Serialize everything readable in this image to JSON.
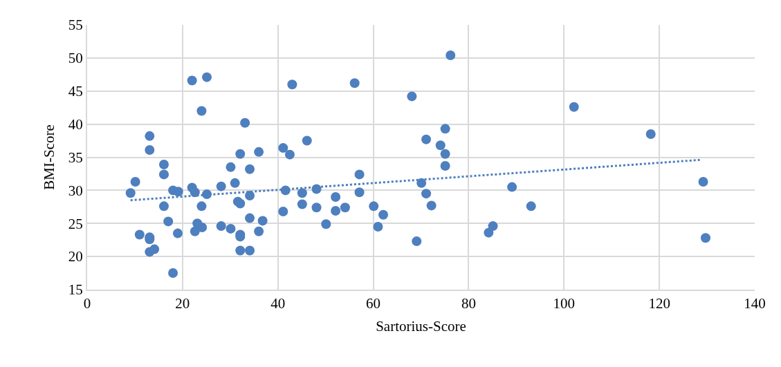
{
  "chart_data": {
    "type": "scatter",
    "xlabel": "Sartorius-Score",
    "ylabel": "BMI-Score",
    "xlim": [
      0,
      140
    ],
    "xticks": [
      0,
      20,
      40,
      60,
      80,
      100,
      120,
      140
    ],
    "ylim": [
      15,
      55
    ],
    "yticks": [
      15,
      20,
      25,
      30,
      35,
      40,
      45,
      50,
      55
    ],
    "grid": true,
    "marker": "circle",
    "series": [
      {
        "color": "#4e7fbf",
        "x": [
          22.0,
          25.1,
          24.0,
          33.1,
          13.1,
          13.1,
          16.1,
          16.1,
          10.1,
          9.1,
          18.0,
          19.1,
          22.0,
          22.6,
          25.1,
          28.1,
          31.0,
          32.1,
          30.1,
          34.1,
          36.0,
          34.1,
          31.6,
          32.1,
          16.1,
          24.0,
          34.1,
          36.8,
          17.0,
          23.1,
          24.1,
          22.6,
          28.1,
          30.1,
          32.1,
          32.1,
          36.0,
          11.0,
          13.1,
          13.1,
          13.1,
          14.1,
          32.1,
          34.1,
          18.0,
          19.0,
          76.2,
          43.0,
          56.1,
          68.1,
          75.1,
          71.1,
          74.1,
          75.1,
          75.1,
          46.1,
          41.1,
          42.5,
          57.1,
          70.1,
          71.1,
          72.2,
          41.6,
          45.1,
          48.1,
          52.1,
          57.1,
          45.1,
          48.1,
          52.1,
          54.1,
          41.1,
          60.1,
          62.1,
          61.0,
          50.1,
          69.1,
          102.1,
          118.2,
          129.2,
          129.7,
          89.1,
          93.1,
          85.1,
          84.2
        ],
        "values": [
          46.6,
          47.1,
          42.0,
          40.2,
          38.2,
          36.1,
          33.9,
          32.4,
          31.3,
          29.6,
          30.0,
          29.8,
          30.4,
          29.7,
          29.4,
          30.6,
          31.1,
          35.5,
          33.5,
          33.2,
          35.8,
          29.2,
          28.3,
          28.0,
          27.6,
          27.6,
          25.8,
          25.4,
          25.3,
          25.0,
          24.4,
          23.8,
          24.6,
          24.2,
          23.3,
          23.0,
          23.8,
          23.3,
          22.9,
          22.6,
          20.7,
          21.1,
          20.9,
          20.9,
          17.5,
          23.5,
          50.4,
          46.0,
          46.2,
          44.2,
          39.3,
          37.7,
          36.8,
          35.5,
          33.7,
          37.5,
          36.4,
          35.4,
          32.4,
          31.1,
          29.5,
          27.7,
          30.0,
          29.6,
          30.2,
          29.0,
          29.7,
          27.9,
          27.4,
          26.9,
          27.4,
          26.8,
          27.6,
          26.3,
          24.5,
          24.9,
          22.3,
          42.6,
          38.5,
          31.3,
          22.8,
          30.5,
          27.6,
          24.6,
          23.6
        ]
      },
      {
        "type": "line",
        "color": "#4e7fbf",
        "line_style": "dotted",
        "marker": "none",
        "x": [
          9.1,
          128.6
        ],
        "values": [
          28.5,
          34.6
        ]
      }
    ]
  }
}
